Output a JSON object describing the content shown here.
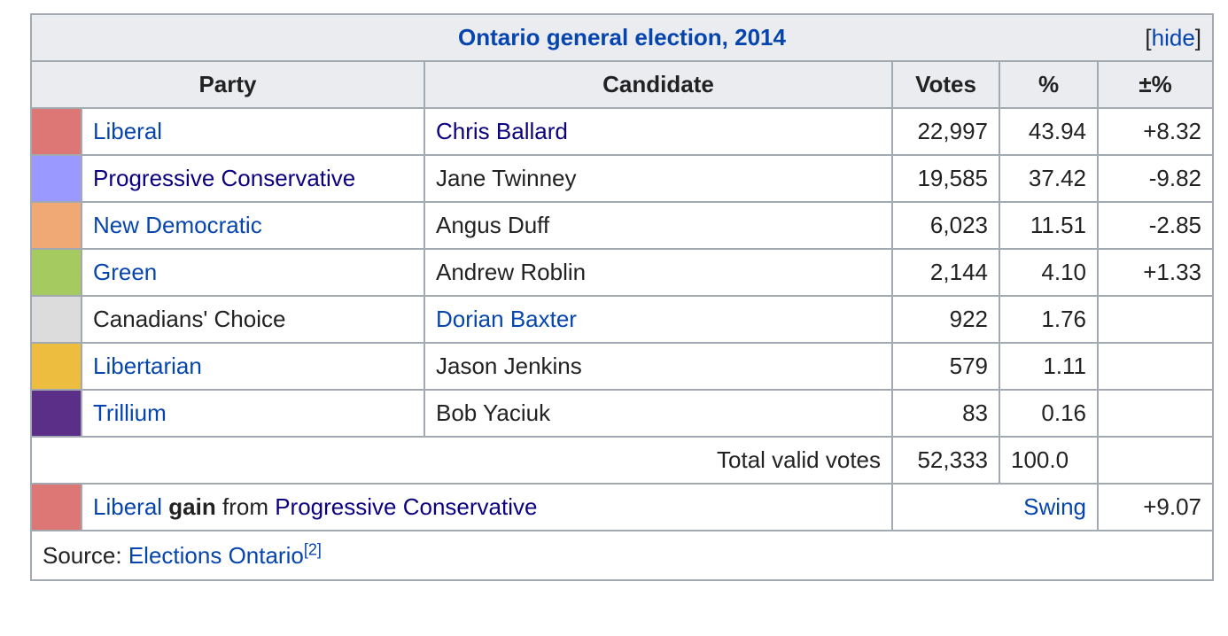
{
  "caption": {
    "title": "Ontario general election, 2014",
    "hide_open": "[",
    "hide_label": "hide",
    "hide_close": "]"
  },
  "headers": {
    "party": "Party",
    "candidate": "Candidate",
    "votes": "Votes",
    "percent": "%",
    "change": "±%"
  },
  "rows": [
    {
      "color": "#dc7775",
      "party": "Liberal",
      "candidate": "Chris Ballard",
      "votes": "22,997",
      "percent": "43.94",
      "change": "+8.32"
    },
    {
      "color": "#9999ff",
      "party": "Progressive Conservative",
      "candidate": "Jane Twinney",
      "votes": "19,585",
      "percent": "37.42",
      "change": "-9.82"
    },
    {
      "color": "#f0a875",
      "party": "New Democratic",
      "candidate": "Angus Duff",
      "votes": "6,023",
      "percent": "11.51",
      "change": "-2.85"
    },
    {
      "color": "#a4ca60",
      "party": "Green",
      "candidate": "Andrew Roblin",
      "votes": "2,144",
      "percent": "4.10",
      "change": "+1.33"
    },
    {
      "color": "#dcdcdc",
      "party": "Canadians' Choice",
      "candidate": "Dorian Baxter",
      "votes": "922",
      "percent": "1.76",
      "change": ""
    },
    {
      "color": "#ecbd3e",
      "party": "Libertarian",
      "candidate": "Jason Jenkins",
      "votes": "579",
      "percent": "1.11",
      "change": ""
    },
    {
      "color": "#5b2e87",
      "party": "Trillium",
      "candidate": "Bob Yaciuk",
      "votes": "83",
      "percent": "0.16",
      "change": ""
    }
  ],
  "total": {
    "label": "Total valid votes",
    "votes": "52,333",
    "percent": "100.0"
  },
  "gain": {
    "color": "#dc7775",
    "party": "Liberal",
    "gain_word": "gain",
    "from_word": "from",
    "from_party": "Progressive Conservative",
    "swing_label": "Swing",
    "swing_value": "+9.07"
  },
  "source": {
    "label": "Source:",
    "link": "Elections Ontario",
    "ref": "[2]"
  }
}
